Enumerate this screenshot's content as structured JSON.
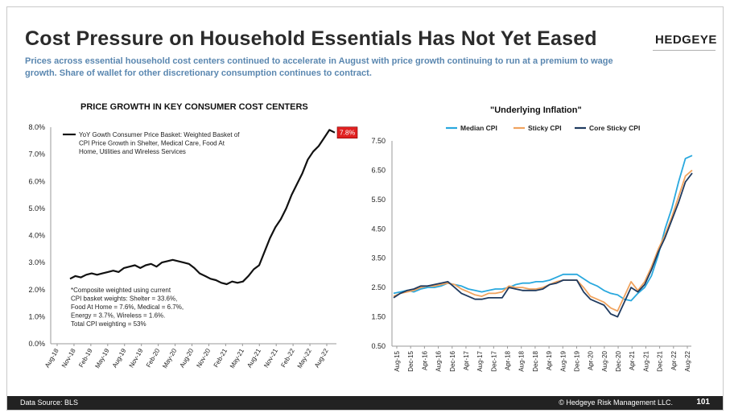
{
  "header": {
    "title": "Cost Pressure on Household Essentials Has Not Yet Eased",
    "logo": "HEDGEYE",
    "subtitle": "Prices across essential household cost centers continued to accelerate in August with price growth continuing to run at a premium to wage growth.  Share of wallet for other discretionary consumption continues to contract."
  },
  "footer": {
    "source": "Data Source: BLS",
    "copyright": "© Hedgeye Risk Management LLC.",
    "page": "101"
  },
  "colors": {
    "subtitle": "#5a87b0",
    "black_line": "#111111",
    "median": "#29a8de",
    "sticky": "#f0a35e",
    "core_sticky": "#1f3a5f",
    "callout": "#e02020"
  },
  "chart_data": [
    {
      "type": "line",
      "title": "PRICE GROWTH IN KEY CONSUMER COST CENTERS",
      "legend": "YoY Gowth Consumer Price Basket: Weighted Basket of CPI Price Growth in Shelter, Medical Care, Food At Home, Utilities and Wireless Services",
      "legend_position": "top-left",
      "callout": "7.8%",
      "note": "*Composite  weighted using current CPI basket weights: Shelter = 33.6%, Food At Home = 7.6%, Medical = 6.7%, Energy = 3.7%, Wireless =  1.6%. Total CPI weighting = 53%",
      "x_tick_labels": [
        "Aug-18",
        "Nov-18",
        "Feb-19",
        "May-19",
        "Aug-19",
        "Nov-19",
        "Feb-20",
        "May-20",
        "Aug-20",
        "Nov-20",
        "Feb-21",
        "May-21",
        "Aug-21",
        "Nov-21",
        "Feb-22",
        "May-22",
        "Aug-22"
      ],
      "y_tick_labels": [
        "0.0%",
        "1.0%",
        "2.0%",
        "3.0%",
        "4.0%",
        "5.0%",
        "6.0%",
        "7.0%",
        "8.0%"
      ],
      "ylim": [
        0,
        8
      ],
      "grid": false,
      "series": [
        {
          "values": [
            2.4,
            2.5,
            2.45,
            2.55,
            2.6,
            2.55,
            2.6,
            2.65,
            2.7,
            2.65,
            2.8,
            2.85,
            2.9,
            2.8,
            2.9,
            2.95,
            2.85,
            3.0,
            3.05,
            3.1,
            3.05,
            3.0,
            2.95,
            2.8,
            2.6,
            2.5,
            2.4,
            2.35,
            2.25,
            2.2,
            2.3,
            2.25,
            2.3,
            2.5,
            2.75,
            2.9,
            3.4,
            3.9,
            4.3,
            4.6,
            5.0,
            5.5,
            5.9,
            6.3,
            6.8,
            7.1,
            7.3,
            7.6,
            7.9,
            7.8
          ]
        }
      ]
    },
    {
      "type": "line",
      "title": "\"Underlying Inflation\"",
      "legend_position": "top",
      "x_tick_labels": [
        "Aug-15",
        "Dec-15",
        "Apr-16",
        "Aug-16",
        "Dec-16",
        "Apr-17",
        "Aug-17",
        "Dec-17",
        "Apr-18",
        "Aug-18",
        "Dec-18",
        "Apr-19",
        "Aug-19",
        "Dec-19",
        "Apr-20",
        "Aug-20",
        "Dec-20",
        "Apr-21",
        "Aug-21",
        "Dec-21",
        "Apr-22",
        "Aug-22"
      ],
      "y_tick_labels": [
        "0.50",
        "1.50",
        "2.50",
        "3.50",
        "4.50",
        "5.50",
        "6.50",
        "7.50"
      ],
      "ylim": [
        0.5,
        7.5
      ],
      "grid": false,
      "series": [
        {
          "name": "Median CPI",
          "values": [
            2.3,
            2.35,
            2.4,
            2.35,
            2.45,
            2.5,
            2.5,
            2.55,
            2.65,
            2.6,
            2.55,
            2.45,
            2.4,
            2.35,
            2.4,
            2.45,
            2.45,
            2.5,
            2.6,
            2.65,
            2.65,
            2.7,
            2.7,
            2.75,
            2.85,
            2.95,
            2.95,
            2.95,
            2.8,
            2.65,
            2.55,
            2.4,
            2.3,
            2.25,
            2.1,
            2.05,
            2.3,
            2.5,
            2.9,
            3.6,
            4.5,
            5.2,
            6.1,
            6.9,
            7.0
          ]
        },
        {
          "name": "Sticky CPI",
          "values": [
            2.2,
            2.3,
            2.35,
            2.4,
            2.5,
            2.55,
            2.55,
            2.6,
            2.65,
            2.6,
            2.45,
            2.35,
            2.25,
            2.2,
            2.3,
            2.3,
            2.35,
            2.55,
            2.5,
            2.5,
            2.45,
            2.45,
            2.5,
            2.6,
            2.7,
            2.75,
            2.75,
            2.75,
            2.5,
            2.2,
            2.1,
            2.0,
            1.8,
            1.7,
            2.2,
            2.7,
            2.4,
            2.7,
            3.2,
            3.8,
            4.3,
            4.9,
            5.6,
            6.3,
            6.5
          ]
        },
        {
          "name": "Core Sticky CPI",
          "values": [
            2.15,
            2.3,
            2.4,
            2.45,
            2.55,
            2.55,
            2.6,
            2.65,
            2.7,
            2.5,
            2.3,
            2.2,
            2.1,
            2.1,
            2.15,
            2.15,
            2.15,
            2.5,
            2.45,
            2.4,
            2.4,
            2.4,
            2.45,
            2.6,
            2.65,
            2.75,
            2.75,
            2.75,
            2.35,
            2.1,
            2.0,
            1.9,
            1.6,
            1.5,
            2.0,
            2.5,
            2.35,
            2.6,
            3.1,
            3.7,
            4.2,
            4.8,
            5.4,
            6.1,
            6.4
          ]
        }
      ]
    }
  ]
}
